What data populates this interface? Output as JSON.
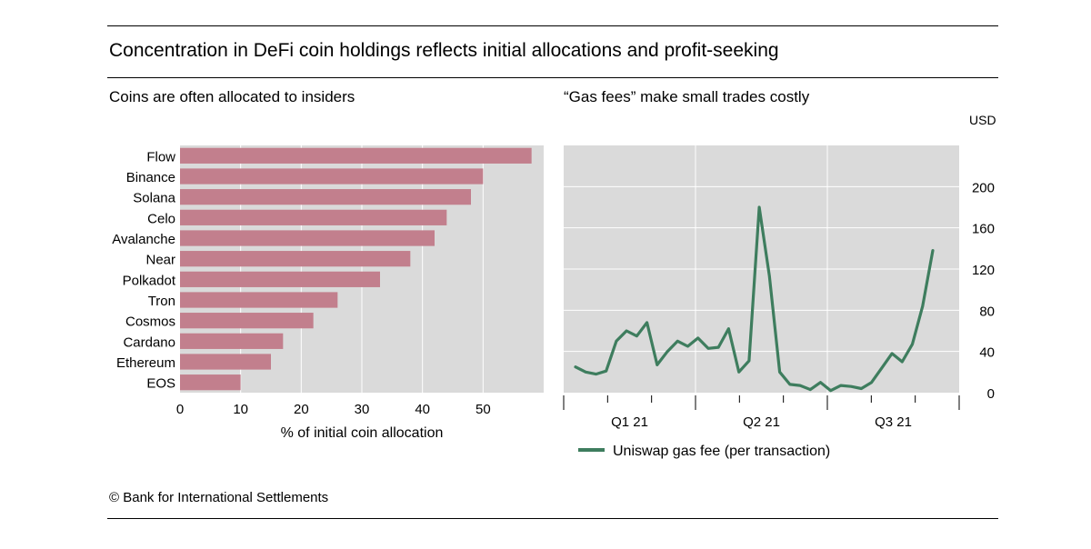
{
  "title": "Concentration in DeFi coin holdings reflects initial allocations and profit-seeking",
  "footer": "© Bank for International Settlements",
  "colors": {
    "bar": "#c27f8d",
    "line": "#3e7d5e",
    "panel_bg": "#dadada"
  },
  "chart_data": [
    {
      "type": "bar",
      "orientation": "horizontal",
      "title": "Coins are often allocated to insiders",
      "xlabel": "% of initial coin allocation",
      "ylabel": "",
      "xlim": [
        0,
        60
      ],
      "xticks": [
        0,
        10,
        20,
        30,
        40,
        50
      ],
      "grid": true,
      "categories": [
        "Flow",
        "Binance",
        "Solana",
        "Celo",
        "Avalanche",
        "Near",
        "Polkadot",
        "Tron",
        "Cosmos",
        "Cardano",
        "Ethereum",
        "EOS"
      ],
      "values": [
        58,
        50,
        48,
        44,
        42,
        38,
        33,
        26,
        22,
        17,
        15,
        10
      ]
    },
    {
      "type": "line",
      "title": "“Gas fees” make small trades costly",
      "unit": "USD",
      "xlabel": "",
      "ylabel": "",
      "ylim": [
        0,
        240
      ],
      "yticks": [
        0,
        40,
        80,
        120,
        160,
        200
      ],
      "y_axis_side": "right",
      "grid": true,
      "quarter_labels": [
        "Q1 21",
        "Q2 21",
        "Q3 21"
      ],
      "legend": {
        "position": "bottom",
        "entries": [
          "Uniswap gas fee (per transaction)"
        ]
      },
      "series": [
        {
          "name": "Uniswap gas fee (per transaction)",
          "values": [
            25,
            20,
            18,
            21,
            50,
            60,
            55,
            68,
            27,
            40,
            50,
            45,
            53,
            43,
            44,
            62,
            20,
            31,
            180,
            113,
            20,
            8,
            7,
            3,
            10,
            2,
            7,
            6,
            4,
            10,
            24,
            38,
            30,
            47,
            84,
            138
          ]
        }
      ]
    }
  ]
}
